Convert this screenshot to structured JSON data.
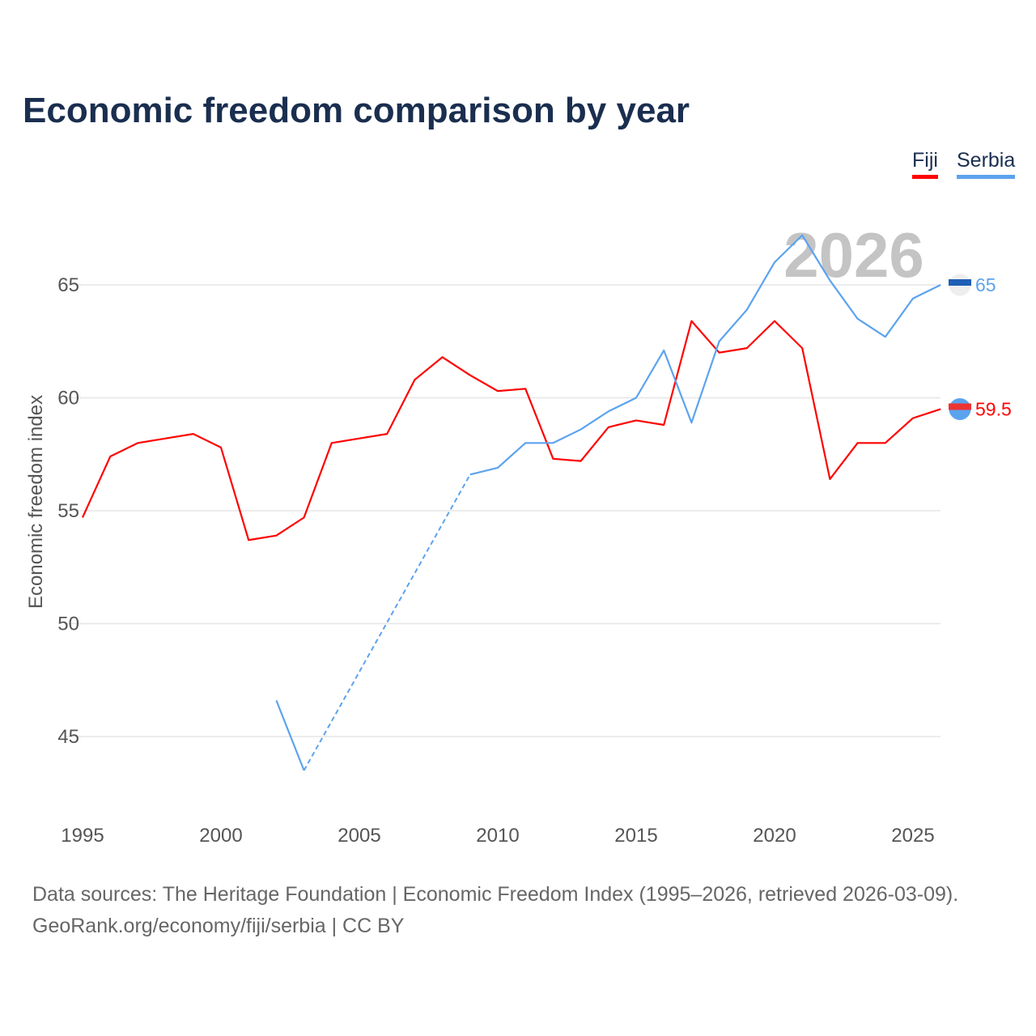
{
  "title": "Economic freedom comparison by year",
  "footer": {
    "line1": "Data sources: The Heritage Foundation | Economic Freedom Index (1995–2026, retrieved 2026-03-09).",
    "line2": "GeoRank.org/economy/fiji/serbia | CC BY"
  },
  "chart_data": {
    "type": "line",
    "title": "Economic freedom comparison by year",
    "xlabel": "",
    "ylabel": "Economic freedom index",
    "xlim": [
      1995,
      2026
    ],
    "ylim": [
      42,
      68.5
    ],
    "x_ticks": [
      "1995",
      "2000",
      "2005",
      "2010",
      "2015",
      "2020",
      "2025"
    ],
    "y_ticks": [
      "45",
      "50",
      "55",
      "60",
      "65"
    ],
    "grid": true,
    "legend_position": "top-right",
    "year_watermark": "2026",
    "x": [
      1995,
      1996,
      1997,
      1998,
      1999,
      2000,
      2001,
      2002,
      2003,
      2004,
      2005,
      2006,
      2007,
      2008,
      2009,
      2010,
      2011,
      2012,
      2013,
      2014,
      2015,
      2016,
      2017,
      2018,
      2019,
      2020,
      2021,
      2022,
      2023,
      2024,
      2025,
      2026
    ],
    "series": [
      {
        "name": "Fiji",
        "color": "#ff0000",
        "end_label": "59.5",
        "values": [
          54.7,
          57.4,
          58.0,
          58.2,
          58.4,
          57.8,
          53.7,
          53.9,
          54.7,
          58.0,
          58.2,
          58.4,
          60.8,
          61.8,
          61.0,
          60.3,
          60.4,
          57.3,
          57.2,
          58.7,
          59.0,
          58.8,
          63.4,
          62.0,
          62.2,
          63.4,
          62.2,
          56.4,
          58.0,
          58.0,
          59.1,
          59.5
        ]
      },
      {
        "name": "Serbia",
        "color": "#5ca3ee",
        "end_label": "65",
        "values": [
          null,
          null,
          null,
          null,
          null,
          null,
          null,
          46.6,
          43.5,
          null,
          null,
          null,
          null,
          null,
          56.6,
          56.9,
          58.0,
          58.0,
          58.6,
          59.4,
          60.0,
          62.1,
          58.9,
          62.5,
          63.9,
          66.0,
          67.2,
          65.2,
          63.5,
          62.7,
          64.4,
          65.0
        ]
      }
    ]
  }
}
